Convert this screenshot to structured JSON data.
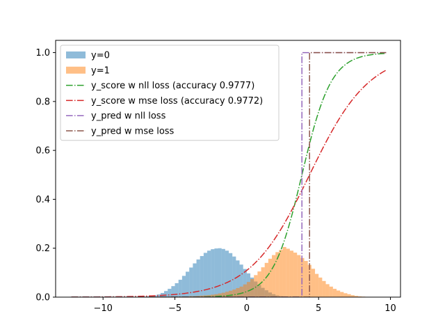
{
  "chart_data": {
    "type": "histogram+line",
    "title": "",
    "xlabel": "",
    "ylabel": "",
    "xlim": [
      -13.3,
      10.7
    ],
    "ylim": [
      0,
      1.05
    ],
    "xticks": [
      -10,
      -5,
      0,
      5,
      10
    ],
    "yticks": [
      0.0,
      0.2,
      0.4,
      0.6,
      0.8,
      1.0
    ],
    "xtick_labels": [
      "−10",
      "−5",
      "0",
      "5",
      "10"
    ],
    "ytick_labels": [
      "0.0",
      "0.2",
      "0.4",
      "0.6",
      "0.8",
      "1.0"
    ],
    "grid": false,
    "legend_position": "upper-left",
    "histograms": [
      {
        "name": "y=0",
        "color": "#1f77b4",
        "alpha": 0.5,
        "bin_edges": [
          -7.5,
          -7.25,
          -7.0,
          -6.75,
          -6.5,
          -6.25,
          -6.0,
          -5.75,
          -5.5,
          -5.25,
          -5.0,
          -4.75,
          -4.5,
          -4.25,
          -4.0,
          -3.75,
          -3.5,
          -3.25,
          -3.0,
          -2.75,
          -2.5,
          -2.25,
          -2.0,
          -1.75,
          -1.5,
          -1.25,
          -1.0,
          -0.75,
          -0.5,
          -0.25,
          0.0,
          0.25,
          0.5,
          0.75,
          1.0,
          1.25,
          1.5,
          1.75,
          2.0,
          2.25,
          2.5,
          2.75,
          3.0
        ],
        "counts": [
          0.001,
          0.002,
          0.003,
          0.005,
          0.007,
          0.011,
          0.017,
          0.025,
          0.034,
          0.045,
          0.057,
          0.071,
          0.087,
          0.104,
          0.121,
          0.138,
          0.154,
          0.168,
          0.181,
          0.19,
          0.196,
          0.199,
          0.2,
          0.197,
          0.19,
          0.18,
          0.166,
          0.15,
          0.133,
          0.115,
          0.097,
          0.08,
          0.064,
          0.05,
          0.038,
          0.028,
          0.019,
          0.012,
          0.007,
          0.004,
          0.002,
          0.001
        ]
      },
      {
        "name": "y=1",
        "color": "#ff7f0e",
        "alpha": 0.5,
        "bin_edges": [
          -6.0,
          -5.75,
          -5.5,
          -5.25,
          -5.0,
          -4.75,
          -4.5,
          -4.25,
          -4.0,
          -3.75,
          -3.5,
          -3.25,
          -3.0,
          -2.75,
          -2.5,
          -2.25,
          -2.0,
          -1.75,
          -1.5,
          -1.25,
          -1.0,
          -0.75,
          -0.5,
          -0.25,
          0.0,
          0.25,
          0.5,
          0.75,
          1.0,
          1.25,
          1.5,
          1.75,
          2.0,
          2.25,
          2.5,
          2.75,
          3.0,
          3.25,
          3.5,
          3.75,
          4.0,
          4.25,
          4.5,
          4.75,
          5.0,
          5.25,
          5.5,
          5.75,
          6.0,
          6.25,
          6.5,
          6.75,
          7.0,
          7.25,
          7.5,
          7.75,
          8.0,
          8.25,
          8.5
        ],
        "counts": [
          0.001,
          0.001,
          0.001,
          0.002,
          0.002,
          0.002,
          0.003,
          0.003,
          0.004,
          0.004,
          0.005,
          0.006,
          0.007,
          0.008,
          0.01,
          0.012,
          0.015,
          0.018,
          0.022,
          0.026,
          0.031,
          0.037,
          0.043,
          0.052,
          0.062,
          0.074,
          0.09,
          0.105,
          0.122,
          0.14,
          0.157,
          0.172,
          0.184,
          0.193,
          0.205,
          0.198,
          0.19,
          0.182,
          0.172,
          0.16,
          0.148,
          0.132,
          0.116,
          0.095,
          0.08,
          0.066,
          0.053,
          0.043,
          0.034,
          0.027,
          0.021,
          0.016,
          0.012,
          0.008,
          0.005,
          0.003,
          0.002,
          0.001
        ]
      }
    ],
    "lines": [
      {
        "name": "y_score w nll loss (accuracy 0.9777)",
        "color": "#2ca02c",
        "dash": "dashdot",
        "function": "logistic",
        "center": 3.84,
        "slope": 0.98,
        "x_range": [
          -12.2,
          9.7
        ]
      },
      {
        "name": "y_score w mse loss (accuracy 0.9772)",
        "color": "#d62728",
        "dash": "dashdot",
        "function": "logistic",
        "center": 4.37,
        "slope": 0.48,
        "x_range": [
          -12.2,
          9.7
        ]
      },
      {
        "name": "y_pred w nll loss",
        "color": "#9467bd",
        "dash": "dashdot",
        "function": "step",
        "threshold": 3.84,
        "x_range": [
          -12.2,
          9.7
        ]
      },
      {
        "name": "y_pred w mse loss",
        "color": "#8c564b",
        "dash": "dashdot",
        "function": "step",
        "threshold": 4.37,
        "x_range": [
          -12.2,
          9.7
        ]
      }
    ]
  }
}
